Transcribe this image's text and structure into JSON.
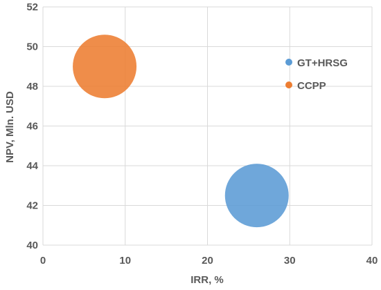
{
  "chart_data": {
    "type": "bubble",
    "xlabel": "IRR, %",
    "ylabel": "NPV, Mln. USD",
    "xlim": [
      0,
      40
    ],
    "ylim": [
      40,
      52
    ],
    "xticks": [
      0,
      10,
      20,
      30,
      40
    ],
    "yticks": [
      40,
      42,
      44,
      46,
      48,
      50,
      52
    ],
    "grid": true,
    "legend_position": "right",
    "series": [
      {
        "name": "GT+HRSG",
        "x": 26,
        "y": 42.5,
        "color": "#5b9bd5",
        "size": 1
      },
      {
        "name": "CCPP",
        "x": 7.5,
        "y": 49,
        "color": "#ed7d31",
        "size": 1
      }
    ]
  }
}
